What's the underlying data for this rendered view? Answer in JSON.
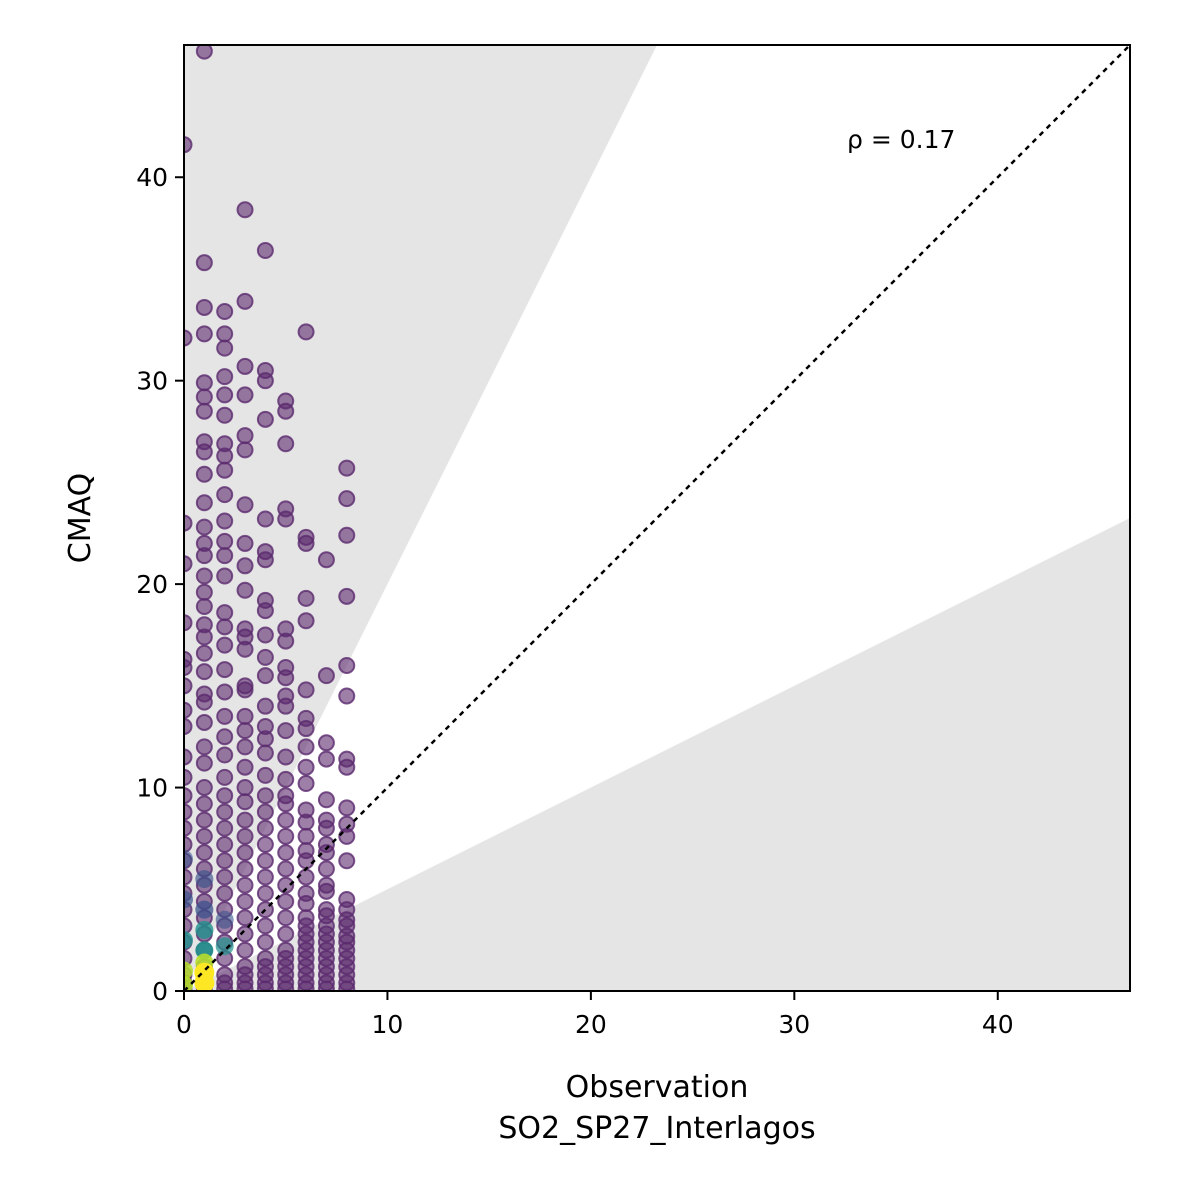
{
  "chart_data": {
    "type": "scatter",
    "title": "",
    "xlabel": "Observation",
    "xlabel_sub": "SO2_SP27_Interlagos",
    "ylabel": "CMAQ",
    "xlim": [
      0,
      46.5
    ],
    "ylim": [
      0,
      46.5
    ],
    "x_ticks": [
      0,
      10,
      20,
      30,
      40
    ],
    "y_ticks": [
      0,
      10,
      20,
      30,
      40
    ],
    "x_tick_labels": [
      "0",
      "10",
      "20",
      "30",
      "40"
    ],
    "y_tick_labels": [
      "0",
      "10",
      "20",
      "30",
      "40"
    ],
    "grid": false,
    "annotation": "ρ = 0.17",
    "reference_line": "1:1",
    "shaded_region_slopes": [
      0.5,
      2
    ],
    "colormap": "viridis",
    "colors": {
      "shade": "#e5e5e5",
      "low_density": "#5b2a6e",
      "mid_density": "#3b528b",
      "teal": "#21918c",
      "high_density": "#b5de2b",
      "peak": "#fde725"
    },
    "points": [
      [
        1,
        46.2
      ],
      [
        0,
        41.6
      ],
      [
        3,
        38.4
      ],
      [
        4,
        36.4
      ],
      [
        1,
        35.8
      ],
      [
        1,
        33.6
      ],
      [
        2,
        33.4
      ],
      [
        3,
        33.9
      ],
      [
        0,
        32.1
      ],
      [
        1,
        32.3
      ],
      [
        2,
        32.3
      ],
      [
        6,
        32.4
      ],
      [
        2,
        31.6
      ],
      [
        4,
        30.5
      ],
      [
        3,
        30.7
      ],
      [
        1,
        29.9
      ],
      [
        2,
        30.2
      ],
      [
        4,
        30.0
      ],
      [
        1,
        29.2
      ],
      [
        2,
        29.3
      ],
      [
        3,
        29.3
      ],
      [
        5,
        29.0
      ],
      [
        5,
        28.5
      ],
      [
        1,
        28.5
      ],
      [
        2,
        28.3
      ],
      [
        4,
        28.1
      ],
      [
        1,
        27.0
      ],
      [
        2,
        26.9
      ],
      [
        3,
        27.3
      ],
      [
        5,
        26.9
      ],
      [
        1,
        26.5
      ],
      [
        2,
        26.3
      ],
      [
        3,
        26.6
      ],
      [
        8,
        25.7
      ],
      [
        1,
        25.4
      ],
      [
        2,
        25.6
      ],
      [
        8,
        24.2
      ],
      [
        1,
        24.0
      ],
      [
        2,
        24.4
      ],
      [
        3,
        23.9
      ],
      [
        4,
        23.2
      ],
      [
        5,
        23.7
      ],
      [
        5,
        23.2
      ],
      [
        0,
        23.0
      ],
      [
        1,
        22.8
      ],
      [
        2,
        23.1
      ],
      [
        6,
        22.3
      ],
      [
        6,
        22.0
      ],
      [
        8,
        22.4
      ],
      [
        1,
        22.0
      ],
      [
        2,
        22.1
      ],
      [
        3,
        22.0
      ],
      [
        4,
        21.6
      ],
      [
        1,
        21.4
      ],
      [
        2,
        21.4
      ],
      [
        4,
        21.2
      ],
      [
        7,
        21.2
      ],
      [
        0,
        21.0
      ],
      [
        1,
        20.4
      ],
      [
        3,
        20.9
      ],
      [
        2,
        20.4
      ],
      [
        3,
        19.7
      ],
      [
        1,
        19.6
      ],
      [
        4,
        19.2
      ],
      [
        6,
        19.3
      ],
      [
        8,
        19.4
      ],
      [
        1,
        18.9
      ],
      [
        2,
        18.6
      ],
      [
        4,
        18.7
      ],
      [
        6,
        18.2
      ],
      [
        0,
        18.1
      ],
      [
        1,
        18.0
      ],
      [
        2,
        17.9
      ],
      [
        3,
        17.8
      ],
      [
        5,
        17.8
      ],
      [
        1,
        17.4
      ],
      [
        3,
        17.4
      ],
      [
        4,
        17.5
      ],
      [
        5,
        17.2
      ],
      [
        2,
        17.0
      ],
      [
        0,
        16.3
      ],
      [
        1,
        16.6
      ],
      [
        3,
        16.8
      ],
      [
        4,
        16.4
      ],
      [
        0,
        15.9
      ],
      [
        2,
        15.8
      ],
      [
        5,
        15.9
      ],
      [
        8,
        16.0
      ],
      [
        1,
        15.7
      ],
      [
        4,
        15.5
      ],
      [
        7,
        15.5
      ],
      [
        5,
        15.4
      ],
      [
        0,
        15.0
      ],
      [
        3,
        15.0
      ],
      [
        1,
        14.6
      ],
      [
        2,
        14.7
      ],
      [
        3,
        14.8
      ],
      [
        5,
        14.5
      ],
      [
        6,
        14.8
      ],
      [
        8,
        14.5
      ],
      [
        1,
        14.2
      ],
      [
        4,
        14.0
      ],
      [
        5,
        14.0
      ],
      [
        0,
        13.8
      ],
      [
        2,
        13.5
      ],
      [
        3,
        13.5
      ],
      [
        6,
        13.4
      ],
      [
        1,
        13.2
      ],
      [
        4,
        13.0
      ],
      [
        0,
        13.0
      ],
      [
        3,
        12.8
      ],
      [
        5,
        12.8
      ],
      [
        6,
        12.9
      ],
      [
        2,
        12.5
      ],
      [
        4,
        12.4
      ],
      [
        1,
        12.0
      ],
      [
        3,
        12.0
      ],
      [
        6,
        12.0
      ],
      [
        7,
        12.2
      ],
      [
        8,
        11.4
      ],
      [
        0,
        11.5
      ],
      [
        2,
        11.6
      ],
      [
        4,
        11.7
      ],
      [
        5,
        11.5
      ],
      [
        7,
        11.4
      ],
      [
        8,
        11.0
      ],
      [
        1,
        11.2
      ],
      [
        3,
        11.0
      ],
      [
        6,
        11.0
      ],
      [
        0,
        10.5
      ],
      [
        2,
        10.5
      ],
      [
        4,
        10.6
      ],
      [
        5,
        10.4
      ],
      [
        1,
        10.0
      ],
      [
        3,
        10.0
      ],
      [
        6,
        10.2
      ],
      [
        0,
        9.6
      ],
      [
        2,
        9.6
      ],
      [
        4,
        9.6
      ],
      [
        5,
        9.6
      ],
      [
        1,
        9.2
      ],
      [
        3,
        9.3
      ],
      [
        5,
        9.2
      ],
      [
        7,
        9.4
      ],
      [
        8,
        9.0
      ],
      [
        0,
        8.8
      ],
      [
        2,
        8.8
      ],
      [
        4,
        8.8
      ],
      [
        6,
        8.9
      ],
      [
        1,
        8.4
      ],
      [
        3,
        8.4
      ],
      [
        5,
        8.4
      ],
      [
        6,
        8.3
      ],
      [
        7,
        8.4
      ],
      [
        8,
        8.2
      ],
      [
        0,
        8.0
      ],
      [
        2,
        8.0
      ],
      [
        4,
        8.0
      ],
      [
        7,
        8.0
      ],
      [
        1,
        7.6
      ],
      [
        3,
        7.6
      ],
      [
        5,
        7.6
      ],
      [
        6,
        7.6
      ],
      [
        0,
        7.2
      ],
      [
        2,
        7.2
      ],
      [
        4,
        7.2
      ],
      [
        7,
        7.2
      ],
      [
        8,
        7.6
      ],
      [
        1,
        6.8
      ],
      [
        3,
        6.8
      ],
      [
        5,
        6.8
      ],
      [
        6,
        6.9
      ],
      [
        7,
        6.8
      ],
      [
        0,
        6.4
      ],
      [
        2,
        6.4
      ],
      [
        4,
        6.4
      ],
      [
        6,
        6.4
      ],
      [
        8,
        6.4
      ],
      [
        1,
        6.0
      ],
      [
        3,
        6.0
      ],
      [
        5,
        6.0
      ],
      [
        7,
        6.0
      ],
      [
        0,
        5.6
      ],
      [
        2,
        5.6
      ],
      [
        4,
        5.6
      ],
      [
        6,
        5.6
      ],
      [
        1,
        5.2
      ],
      [
        3,
        5.2
      ],
      [
        5,
        5.2
      ],
      [
        7,
        5.2
      ],
      [
        0,
        4.8
      ],
      [
        2,
        4.8
      ],
      [
        4,
        4.8
      ],
      [
        6,
        4.8
      ],
      [
        7,
        4.9
      ],
      [
        8,
        4.5
      ],
      [
        1,
        4.4
      ],
      [
        3,
        4.4
      ],
      [
        5,
        4.4
      ],
      [
        6,
        4.3
      ],
      [
        0,
        4.0
      ],
      [
        2,
        4.0
      ],
      [
        4,
        4.0
      ],
      [
        7,
        4.0
      ],
      [
        8,
        4.0
      ],
      [
        1,
        3.6
      ],
      [
        3,
        3.6
      ],
      [
        5,
        3.6
      ],
      [
        6,
        3.6
      ],
      [
        7,
        3.7
      ],
      [
        8,
        3.5
      ],
      [
        0,
        3.2
      ],
      [
        2,
        3.2
      ],
      [
        4,
        3.2
      ],
      [
        6,
        3.2
      ],
      [
        7,
        3.2
      ],
      [
        8,
        3.2
      ],
      [
        1,
        2.8
      ],
      [
        3,
        2.8
      ],
      [
        5,
        2.8
      ],
      [
        6,
        2.8
      ],
      [
        7,
        2.8
      ],
      [
        8,
        2.7
      ],
      [
        0,
        2.4
      ],
      [
        2,
        2.4
      ],
      [
        4,
        2.4
      ],
      [
        6,
        2.4
      ],
      [
        7,
        2.4
      ],
      [
        8,
        2.4
      ],
      [
        1,
        2.0
      ],
      [
        3,
        2.0
      ],
      [
        5,
        2.0
      ],
      [
        6,
        2.0
      ],
      [
        7,
        2.0
      ],
      [
        8,
        2.0
      ],
      [
        0,
        1.6
      ],
      [
        2,
        1.6
      ],
      [
        4,
        1.6
      ],
      [
        5,
        1.6
      ],
      [
        6,
        1.6
      ],
      [
        7,
        1.6
      ],
      [
        8,
        1.6
      ],
      [
        1,
        1.2
      ],
      [
        3,
        1.2
      ],
      [
        4,
        1.2
      ],
      [
        5,
        1.2
      ],
      [
        6,
        1.2
      ],
      [
        7,
        1.2
      ],
      [
        8,
        1.2
      ],
      [
        0,
        0.8
      ],
      [
        2,
        0.8
      ],
      [
        3,
        0.8
      ],
      [
        4,
        0.8
      ],
      [
        5,
        0.8
      ],
      [
        6,
        0.8
      ],
      [
        7,
        0.8
      ],
      [
        8,
        0.8
      ],
      [
        0,
        0.4
      ],
      [
        1,
        0.4
      ],
      [
        2,
        0.4
      ],
      [
        3,
        0.4
      ],
      [
        4,
        0.4
      ],
      [
        5,
        0.4
      ],
      [
        6,
        0.4
      ],
      [
        7,
        0.4
      ],
      [
        8,
        0.4
      ],
      [
        0,
        0.1
      ],
      [
        1,
        0.1
      ],
      [
        2,
        0.1
      ],
      [
        3,
        0.1
      ],
      [
        4,
        0.1
      ],
      [
        5,
        0.1
      ],
      [
        6,
        0.1
      ],
      [
        7,
        0.1
      ],
      [
        8,
        0.1
      ]
    ]
  }
}
